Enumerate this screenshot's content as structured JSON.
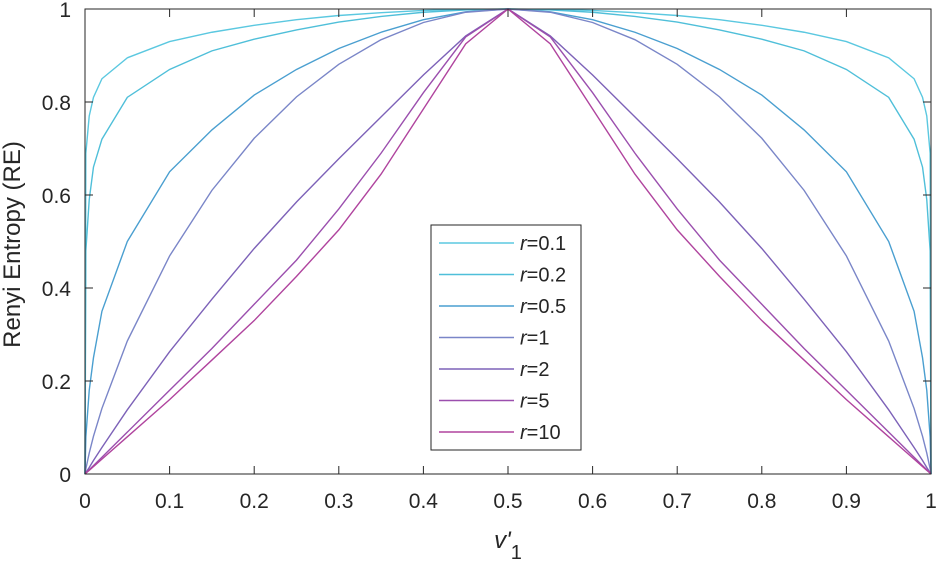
{
  "chart_data": {
    "type": "line",
    "title": "",
    "xlabel": "v'",
    "xlabel_subscript": "1",
    "ylabel": "Renyi Entropy (RE)",
    "xlim": [
      0,
      1
    ],
    "ylim": [
      0,
      1
    ],
    "xticks": [
      "0",
      "0.1",
      "0.2",
      "0.3",
      "0.4",
      "0.5",
      "0.6",
      "0.7",
      "0.8",
      "0.9",
      "1"
    ],
    "yticks": [
      "0",
      "0.2",
      "0.4",
      "0.6",
      "0.8",
      "1"
    ],
    "grid": false,
    "legend_position": "lower-center",
    "x": [
      0,
      0.001,
      0.005,
      0.01,
      0.02,
      0.05,
      0.1,
      0.15,
      0.2,
      0.25,
      0.3,
      0.35,
      0.4,
      0.45,
      0.5,
      0.55,
      0.6,
      0.65,
      0.7,
      0.75,
      0.8,
      0.85,
      0.9,
      0.95,
      0.98,
      0.99,
      0.995,
      0.999,
      1
    ],
    "series": [
      {
        "label_prefix": "r",
        "label_value": "=0.1",
        "color": "#5bc8e0",
        "values": [
          0,
          0.69,
          0.77,
          0.81,
          0.85,
          0.895,
          0.93,
          0.95,
          0.965,
          0.977,
          0.986,
          0.992,
          0.997,
          0.999,
          1,
          0.999,
          0.997,
          0.992,
          0.986,
          0.977,
          0.965,
          0.95,
          0.93,
          0.895,
          0.85,
          0.81,
          0.77,
          0.69,
          0
        ]
      },
      {
        "label_prefix": "r",
        "label_value": "=0.2",
        "color": "#4fbfd9",
        "values": [
          0,
          0.48,
          0.59,
          0.66,
          0.72,
          0.81,
          0.87,
          0.91,
          0.935,
          0.955,
          0.972,
          0.984,
          0.993,
          0.998,
          1,
          0.998,
          0.993,
          0.984,
          0.972,
          0.955,
          0.935,
          0.91,
          0.87,
          0.81,
          0.72,
          0.66,
          0.59,
          0.48,
          0
        ]
      },
      {
        "label_prefix": "r",
        "label_value": "=0.5",
        "color": "#4a9fd0",
        "values": [
          0,
          0.08,
          0.18,
          0.25,
          0.35,
          0.5,
          0.65,
          0.74,
          0.815,
          0.87,
          0.915,
          0.95,
          0.977,
          0.994,
          1,
          0.994,
          0.977,
          0.95,
          0.915,
          0.87,
          0.815,
          0.74,
          0.65,
          0.5,
          0.35,
          0.25,
          0.18,
          0.08,
          0
        ]
      },
      {
        "label_prefix": "r",
        "label_value": "=1",
        "color": "#7a86c8",
        "values": [
          0,
          0.011,
          0.045,
          0.081,
          0.141,
          0.286,
          0.469,
          0.61,
          0.722,
          0.811,
          0.881,
          0.934,
          0.971,
          0.993,
          1,
          0.993,
          0.971,
          0.934,
          0.881,
          0.811,
          0.722,
          0.61,
          0.469,
          0.286,
          0.141,
          0.081,
          0.045,
          0.011,
          0
        ]
      },
      {
        "label_prefix": "r",
        "label_value": "=2",
        "color": "#7d62b8",
        "values": [
          0,
          0.003,
          0.014,
          0.029,
          0.057,
          0.138,
          0.263,
          0.376,
          0.485,
          0.585,
          0.678,
          0.768,
          0.858,
          0.942,
          1,
          0.942,
          0.858,
          0.768,
          0.678,
          0.585,
          0.485,
          0.376,
          0.263,
          0.138,
          0.057,
          0.029,
          0.014,
          0.003,
          0
        ]
      },
      {
        "label_prefix": "r",
        "label_value": "=5",
        "color": "#9b4fae",
        "values": [
          0,
          0.002,
          0.009,
          0.018,
          0.036,
          0.09,
          0.18,
          0.27,
          0.365,
          0.46,
          0.57,
          0.69,
          0.82,
          0.94,
          1,
          0.94,
          0.82,
          0.69,
          0.57,
          0.46,
          0.365,
          0.27,
          0.18,
          0.09,
          0.036,
          0.018,
          0.009,
          0.002,
          0
        ]
      },
      {
        "label_prefix": "r",
        "label_value": "=10",
        "color": "#b0449e",
        "values": [
          0,
          0.002,
          0.008,
          0.016,
          0.032,
          0.08,
          0.16,
          0.245,
          0.33,
          0.425,
          0.525,
          0.645,
          0.785,
          0.925,
          1,
          0.925,
          0.785,
          0.645,
          0.525,
          0.425,
          0.33,
          0.245,
          0.16,
          0.08,
          0.032,
          0.016,
          0.008,
          0.002,
          0
        ]
      }
    ]
  }
}
